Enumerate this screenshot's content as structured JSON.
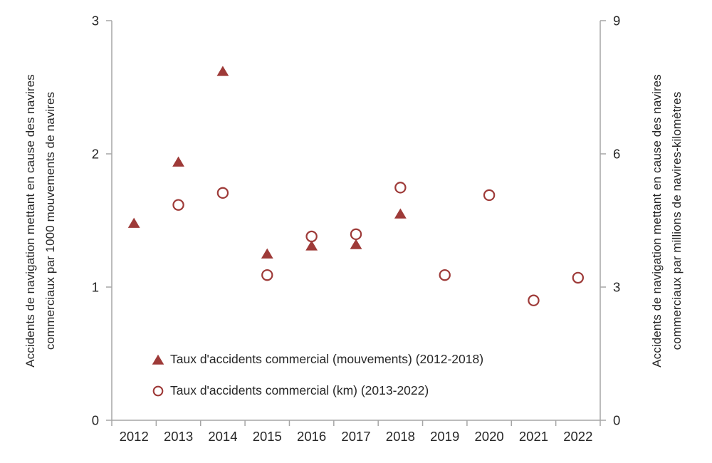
{
  "chart_data": {
    "type": "scatter",
    "title": "",
    "x_categories": [
      "2012",
      "2013",
      "2014",
      "2015",
      "2016",
      "2017",
      "2018",
      "2019",
      "2020",
      "2021",
      "2022"
    ],
    "left_axis": {
      "label_line1": "Accidents de navigation mettant en cause des navires",
      "label_line2": "commerciaux par 1000 mouvements de navires",
      "min": 0,
      "max": 3,
      "ticks": [
        "0",
        "1",
        "2",
        "3"
      ]
    },
    "right_axis": {
      "label_line1": "Accidents de navigation mettant en cause des navires",
      "label_line2": "commerciaux par millions de navires-kilomètres",
      "min": 0,
      "max": 9,
      "ticks": [
        "0",
        "3",
        "6",
        "9"
      ]
    },
    "series": [
      {
        "name": "Taux d'accidents commercial (mouvements) (2012-2018)",
        "axis": "left",
        "marker": "filled-triangle",
        "years": [
          "2012",
          "2013",
          "2014",
          "2015",
          "2016",
          "2017",
          "2018"
        ],
        "values": [
          1.48,
          1.94,
          2.62,
          1.25,
          1.31,
          1.32,
          1.55
        ]
      },
      {
        "name": "Taux d'accidents commercial (km) (2013-2022)",
        "axis": "right",
        "marker": "open-circle",
        "years": [
          "2013",
          "2014",
          "2015",
          "2016",
          "2017",
          "2018",
          "2019",
          "2020",
          "2021",
          "2022"
        ],
        "values": [
          4.85,
          5.12,
          3.27,
          4.14,
          4.19,
          5.24,
          3.27,
          5.07,
          2.7,
          3.21
        ]
      }
    ],
    "legend_position": "inside-bottom-left",
    "grid": "off",
    "colors": {
      "marker": "#9E3A38",
      "axis_line": "#A6A6A6",
      "text": "#262626",
      "background": "#FFFFFF"
    }
  }
}
